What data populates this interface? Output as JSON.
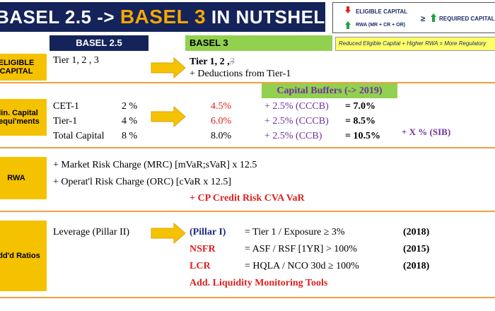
{
  "header": {
    "title_a": "BASEL 2.5 ->",
    "title_b": "BASEL 3",
    "title_c": "IN NUTSHELL"
  },
  "legend": {
    "eligible": "ELIGIBLE CAPITAL",
    "rwa": "RWA (MR + CR + OR)",
    "geq": "≥",
    "required": "REQUIRED CAPITAL",
    "note": "Reduced Eligible Capital + Higher RWA = More Regulatory"
  },
  "columns": {
    "old": "BASEL 2.5",
    "new": "BASEL 3"
  },
  "eligible": {
    "label_1": "ELIGIBLE",
    "label_2": "CAPITAL",
    "old": "Tier 1, 2 , 3",
    "new_a": "Tier 1, 2 ,",
    "new_b": "3",
    "new_c": "+ Deductions from Tier-1"
  },
  "capital": {
    "label_1": "Min. Capital",
    "label_2": "Requi'ments",
    "buffers_title": "Capital Buffers (-> 2019)",
    "rows": [
      [
        "CET-1",
        "2 %",
        "4.5%",
        "+ 2.5% (CCCB)",
        "= 7.0%"
      ],
      [
        "Tier-1",
        "4 %",
        "6.0%",
        "+ 2.5% (CCCB)",
        "= 8.5%"
      ],
      [
        "Total Capital",
        "8 %",
        "8.0%",
        "+ 2.5% (CCB)",
        "= 10.5%"
      ]
    ],
    "sib": "+ X % (SIB)"
  },
  "rwa": {
    "label": "RWA",
    "line_1": "+ Market Risk Charge (MRC) [mVaR;sVaR] x 12.5",
    "line_2": "+ Operat'l Risk Charge (ORC) [cVaR x 12.5]",
    "line_3": "+ CP Credit Risk CVA VaR"
  },
  "ratios": {
    "label": "Add'd Ratios",
    "old": "Leverage (Pillar II)",
    "rows": [
      [
        "(Pillar I)",
        "= Tier 1 / Exposure ≥ 3%",
        "(2018)"
      ],
      [
        "NSFR",
        "= ASF / RSF [1YR] > 100%",
        "(2015)"
      ],
      [
        "LCR",
        "= HQLA / NCO 30d ≥ 100%",
        "(2018)"
      ]
    ],
    "tools": "Add. Liquidity Monitoring Tools"
  }
}
